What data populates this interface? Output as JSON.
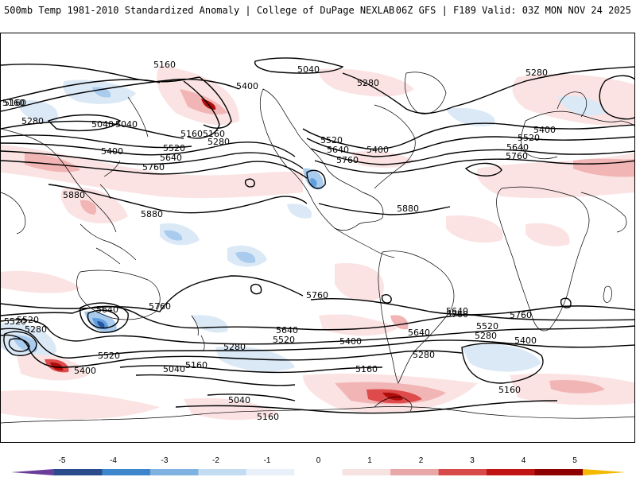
{
  "header": {
    "title_left": "500mb Temp 1981-2010 Standardized Anomaly | College of DuPage NEXLAB",
    "title_right": "06Z GFS | F189 Valid: 03Z MON NOV 24 2025"
  },
  "colorbar": {
    "ticks": [
      "-5",
      "-4",
      "-3",
      "-2",
      "-1",
      "0",
      "1",
      "2",
      "3",
      "4",
      "5"
    ],
    "colors": [
      "#6a3d9a",
      "#2b4c8c",
      "#3d86cc",
      "#7fb2e0",
      "#c3dcf2",
      "#e8f1fa",
      "#ffffff",
      "#f7e2e2",
      "#e8a8a8",
      "#d84a4a",
      "#c01414",
      "#8c0000",
      "#f5b800"
    ]
  },
  "colors": {
    "anom_neg_1": "#dbe9f7",
    "anom_neg_2": "#a9cbee",
    "anom_neg_3": "#5f9fde",
    "anom_neg_4": "#26549e",
    "anom_pos_1": "#fbe3e3",
    "anom_pos_2": "#f2b5b5",
    "anom_pos_3": "#dd4b4b",
    "anom_pos_4": "#b00c0c",
    "contour": "#000000",
    "coastline": "#000000"
  },
  "contour_labels": [
    "5160",
    "5040",
    "5280",
    "5160",
    "5040",
    "5160",
    "5400",
    "5280",
    "5520",
    "5640",
    "5760",
    "5280",
    "5040",
    "5160",
    "5400",
    "5520",
    "5640",
    "5760",
    "5880",
    "5520",
    "5640",
    "5400",
    "5760",
    "5880",
    "5280",
    "5400",
    "5520",
    "5640",
    "5760",
    "5520",
    "5280",
    "5640",
    "5760",
    "5520",
    "5400",
    "5040",
    "5160",
    "5640",
    "5520",
    "5400",
    "5280",
    "5160",
    "5040",
    "5160",
    "5760",
    "5640",
    "5760",
    "5520",
    "5280",
    "5400",
    "5160",
    "5280",
    "5160",
    "5880"
  ]
}
